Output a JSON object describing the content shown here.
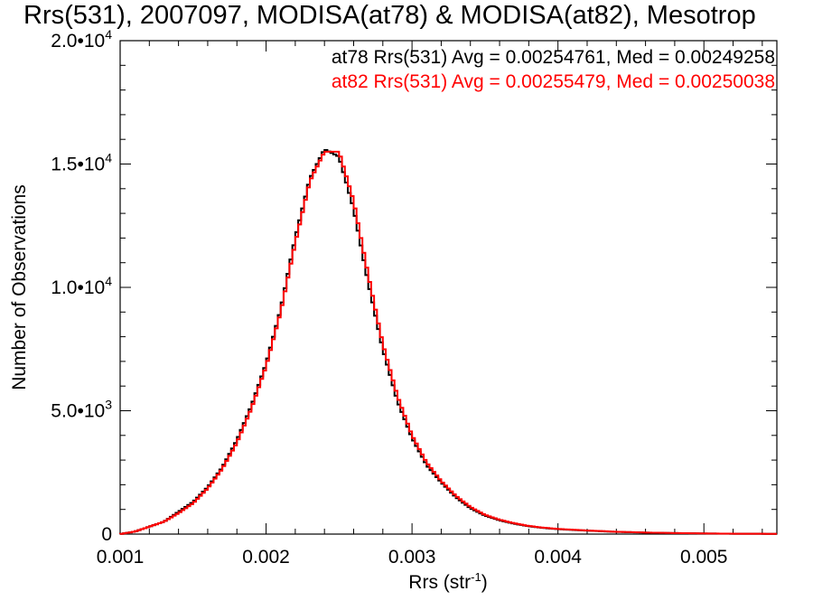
{
  "chart_data": {
    "type": "line",
    "title": "Rrs(531), 2007097, MODISA(at78) & MODISA(at82), Mesotrop",
    "xlabel_main": "Rrs (str",
    "xlabel_sup": "-1",
    "xlabel_close": ")",
    "ylabel": "Number of Observations",
    "xlim": [
      0.001,
      0.0055
    ],
    "ylim": [
      0,
      20000
    ],
    "x_ticks": [
      {
        "value": 0.001,
        "label": "0.001"
      },
      {
        "value": 0.002,
        "label": "0.002"
      },
      {
        "value": 0.003,
        "label": "0.003"
      },
      {
        "value": 0.004,
        "label": "0.004"
      },
      {
        "value": 0.005,
        "label": "0.005"
      }
    ],
    "y_ticks": [
      {
        "value": 0,
        "mant": "0",
        "exp": ""
      },
      {
        "value": 5000,
        "mant": "5.0•10",
        "exp": "3"
      },
      {
        "value": 10000,
        "mant": "1.0•10",
        "exp": "4"
      },
      {
        "value": 15000,
        "mant": "1.5•10",
        "exp": "4"
      },
      {
        "value": 20000,
        "mant": "2.0•10",
        "exp": "4"
      }
    ],
    "series": [
      {
        "name": "at78",
        "color": "#000000",
        "annotation": "at78 Rrs(531) Avg = 0.00254761, Med = 0.00249258",
        "x": [
          0.001,
          0.0011,
          0.0012,
          0.0013,
          0.0014,
          0.0015,
          0.0016,
          0.0017,
          0.0018,
          0.0019,
          0.002,
          0.0021,
          0.0022,
          0.0023,
          0.0024,
          0.0025,
          0.0026,
          0.0027,
          0.0028,
          0.0029,
          0.003,
          0.0031,
          0.0032,
          0.0033,
          0.0034,
          0.0035,
          0.0036,
          0.0037,
          0.0038,
          0.0039,
          0.004,
          0.0042,
          0.0044,
          0.0046,
          0.0048,
          0.005,
          0.0052,
          0.0055
        ],
        "y": [
          0,
          100,
          300,
          500,
          900,
          1300,
          1900,
          2700,
          3800,
          5200,
          6900,
          9100,
          12000,
          14400,
          15600,
          15300,
          13200,
          10200,
          7500,
          5400,
          3900,
          2800,
          2100,
          1500,
          1050,
          750,
          560,
          420,
          320,
          250,
          200,
          140,
          90,
          60,
          40,
          25,
          15,
          10
        ]
      },
      {
        "name": "at82",
        "color": "#ff0000",
        "annotation": "at82 Rrs(531) Avg = 0.00255479, Med = 0.00250038",
        "x": [
          0.001,
          0.0011,
          0.0012,
          0.0013,
          0.0014,
          0.0015,
          0.0016,
          0.0017,
          0.0018,
          0.0019,
          0.002,
          0.0021,
          0.0022,
          0.0023,
          0.0024,
          0.0025,
          0.0026,
          0.0027,
          0.0028,
          0.0029,
          0.003,
          0.0031,
          0.0032,
          0.0033,
          0.0034,
          0.0035,
          0.0036,
          0.0037,
          0.0038,
          0.0039,
          0.004,
          0.0042,
          0.0044,
          0.0046,
          0.0048,
          0.005,
          0.0052,
          0.0055
        ],
        "y": [
          0,
          100,
          300,
          500,
          850,
          1250,
          1850,
          2650,
          3700,
          5100,
          6800,
          9000,
          11800,
          14300,
          15500,
          15500,
          13500,
          10500,
          7700,
          5600,
          4000,
          2900,
          2150,
          1550,
          1100,
          780,
          580,
          440,
          330,
          260,
          210,
          145,
          95,
          62,
          42,
          26,
          16,
          10
        ]
      }
    ]
  }
}
